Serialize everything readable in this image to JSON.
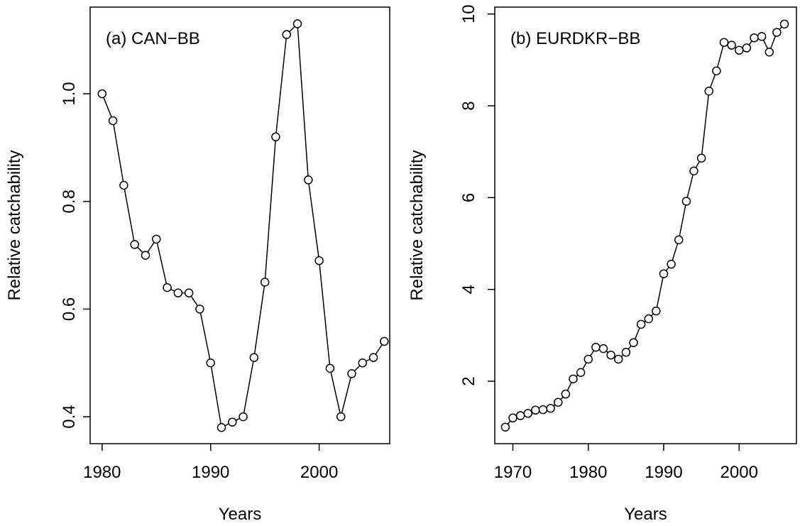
{
  "chart_data": [
    {
      "type": "line",
      "title": "(a) CAN−BB",
      "x_label": "Years",
      "y_label": "Relative catchability",
      "x": [
        1980,
        1981,
        1982,
        1983,
        1984,
        1985,
        1986,
        1987,
        1988,
        1989,
        1990,
        1991,
        1992,
        1993,
        1994,
        1995,
        1996,
        1997,
        1998,
        1999,
        2000,
        2001,
        2002,
        2003,
        2004,
        2005,
        2006
      ],
      "values": [
        1.0,
        0.95,
        0.83,
        0.72,
        0.7,
        0.73,
        0.64,
        0.63,
        0.63,
        0.6,
        0.5,
        0.38,
        0.39,
        0.4,
        0.51,
        0.65,
        0.92,
        1.11,
        1.13,
        0.84,
        0.69,
        0.49,
        0.4,
        0.48,
        0.5,
        0.51,
        0.54
      ],
      "color": "#000000",
      "xlim": [
        1978.9,
        2006.5
      ],
      "xticks": [
        1980,
        1990,
        2000
      ],
      "ylim": [
        0.35,
        1.161
      ],
      "yticks": [
        0.4,
        0.6,
        0.8,
        {
          "value": 1.0,
          "label": "1.0"
        }
      ]
    },
    {
      "type": "line",
      "title": "(b) EURDKR−BB",
      "x_label": "Years",
      "y_label": "Relative catchability",
      "x": [
        1969,
        1970,
        1971,
        1972,
        1973,
        1974,
        1975,
        1976,
        1977,
        1978,
        1979,
        1980,
        1981,
        1982,
        1983,
        1984,
        1985,
        1986,
        1987,
        1988,
        1989,
        1990,
        1991,
        1992,
        1993,
        1994,
        1995,
        1996,
        1997,
        1998,
        1999,
        2000,
        2001,
        2002,
        2003,
        2004,
        2005,
        2006
      ],
      "values": [
        1.0,
        1.2,
        1.25,
        1.3,
        1.37,
        1.38,
        1.41,
        1.54,
        1.72,
        2.05,
        2.19,
        2.48,
        2.74,
        2.71,
        2.57,
        2.48,
        2.63,
        2.84,
        3.24,
        3.36,
        3.53,
        4.34,
        4.55,
        5.08,
        5.92,
        6.58,
        6.86,
        8.32,
        8.76,
        9.38,
        9.32,
        9.21,
        9.26,
        9.48,
        9.51,
        9.17,
        9.6,
        9.78
      ],
      "color": "#000000",
      "xlim": [
        1967.6,
        2007.6
      ],
      "xticks": [
        1970,
        1980,
        1990,
        2000
      ],
      "ylim": [
        0.64,
        10.15
      ],
      "yticks": [
        2,
        4,
        6,
        8,
        10
      ]
    }
  ]
}
